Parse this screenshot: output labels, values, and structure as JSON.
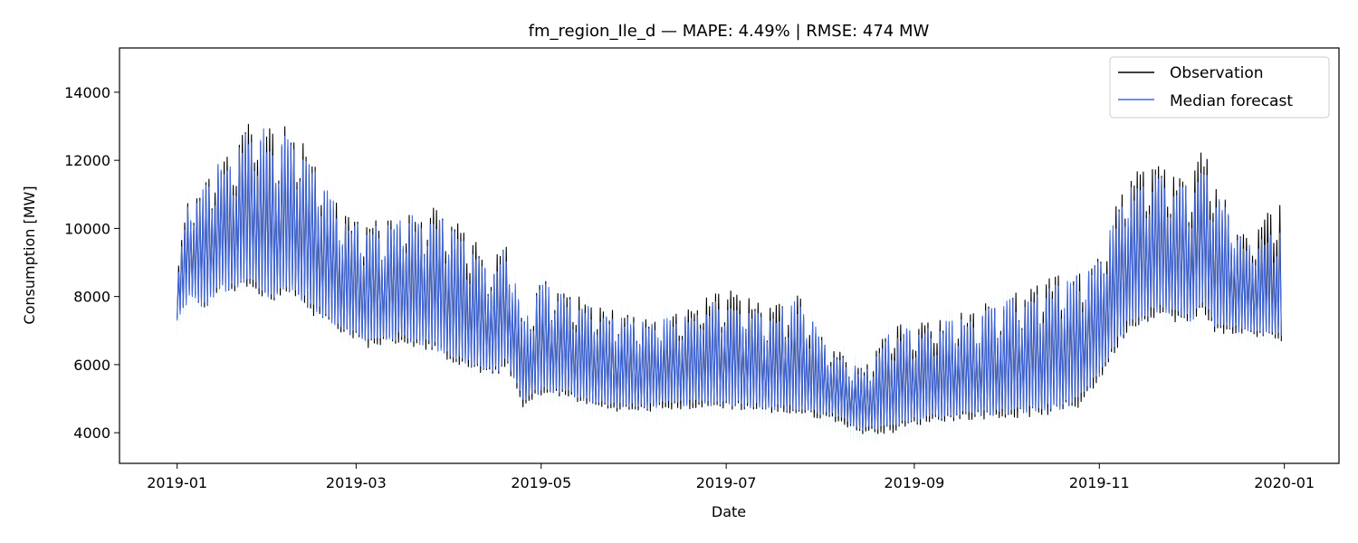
{
  "chart_data": {
    "type": "line",
    "title": "fm_region_Ile_d — MAPE: 4.49% | RMSE: 474 MW",
    "xlabel": "Date",
    "ylabel": "Consumption [MW]",
    "xlim": [
      "2018-12-13",
      "2020-01-19"
    ],
    "ylim": [
      3100,
      15300
    ],
    "x_ticks": [
      "2019-01",
      "2019-03",
      "2019-05",
      "2019-07",
      "2019-09",
      "2019-11",
      "2020-01"
    ],
    "y_ticks": [
      4000,
      6000,
      8000,
      10000,
      12000,
      14000
    ],
    "grid": false,
    "legend_position": "top-right",
    "colors": {
      "observation": "#000000",
      "median": "#4169e1",
      "band": "#add8e6"
    },
    "series": [
      {
        "name": "Observation",
        "role": "observation",
        "envelope_dates": [
          "2019-01-01",
          "2019-01-05",
          "2019-01-10",
          "2019-01-15",
          "2019-01-20",
          "2019-01-25",
          "2019-02-01",
          "2019-02-07",
          "2019-02-15",
          "2019-02-25",
          "2019-03-05",
          "2019-03-15",
          "2019-03-25",
          "2019-04-05",
          "2019-04-15",
          "2019-04-20",
          "2019-04-25",
          "2019-05-01",
          "2019-05-10",
          "2019-05-20",
          "2019-06-01",
          "2019-06-15",
          "2019-07-01",
          "2019-07-15",
          "2019-07-25",
          "2019-08-05",
          "2019-08-15",
          "2019-08-25",
          "2019-09-05",
          "2019-09-20",
          "2019-10-01",
          "2019-10-15",
          "2019-10-25",
          "2019-11-01",
          "2019-11-10",
          "2019-11-20",
          "2019-12-01",
          "2019-12-05",
          "2019-12-10",
          "2019-12-20",
          "2019-12-31"
        ],
        "envelope_high": [
          9000,
          11800,
          12100,
          12900,
          13000,
          14400,
          13900,
          13900,
          12900,
          11000,
          10800,
          11200,
          11400,
          10800,
          9600,
          10500,
          7700,
          9200,
          8700,
          8300,
          7900,
          8100,
          8900,
          8200,
          8700,
          6900,
          6300,
          7800,
          7800,
          8200,
          8700,
          9200,
          9500,
          10000,
          12300,
          12700,
          12200,
          13300,
          12000,
          10200,
          11700
        ],
        "envelope_low": [
          7300,
          7900,
          7500,
          8100,
          8000,
          8200,
          7600,
          8000,
          7300,
          6800,
          6400,
          6500,
          6300,
          5800,
          5500,
          5800,
          4600,
          5000,
          4900,
          4600,
          4500,
          4600,
          4600,
          4500,
          4400,
          4300,
          3900,
          3900,
          4200,
          4300,
          4300,
          4400,
          4600,
          5400,
          6800,
          7300,
          7000,
          7400,
          6700,
          6800,
          6500
        ]
      },
      {
        "name": "Median forecast",
        "role": "median",
        "envelope_dates": [
          "2019-01-01",
          "2019-01-05",
          "2019-01-10",
          "2019-01-15",
          "2019-01-20",
          "2019-01-25",
          "2019-02-01",
          "2019-02-07",
          "2019-02-15",
          "2019-02-25",
          "2019-03-05",
          "2019-03-15",
          "2019-03-25",
          "2019-04-05",
          "2019-04-15",
          "2019-04-20",
          "2019-04-25",
          "2019-05-01",
          "2019-05-10",
          "2019-05-20",
          "2019-06-01",
          "2019-06-15",
          "2019-07-01",
          "2019-07-15",
          "2019-07-25",
          "2019-08-05",
          "2019-08-15",
          "2019-08-25",
          "2019-09-05",
          "2019-09-20",
          "2019-10-01",
          "2019-10-15",
          "2019-10-25",
          "2019-11-01",
          "2019-11-10",
          "2019-11-20",
          "2019-12-01",
          "2019-12-05",
          "2019-12-10",
          "2019-12-20",
          "2019-12-31"
        ],
        "envelope_high": [
          8800,
          11500,
          11900,
          12700,
          12800,
          14000,
          13700,
          13600,
          12700,
          10800,
          10600,
          11000,
          11200,
          10500,
          9400,
          10200,
          7600,
          9000,
          8500,
          8100,
          7800,
          7900,
          8600,
          8000,
          8500,
          6700,
          6200,
          7600,
          7600,
          8000,
          8500,
          9000,
          9300,
          9800,
          12000,
          12400,
          11900,
          12900,
          11800,
          10000,
          10700
        ],
        "envelope_low": [
          7200,
          7800,
          7500,
          8000,
          8000,
          8200,
          7700,
          8000,
          7400,
          6900,
          6500,
          6600,
          6400,
          5900,
          5600,
          5900,
          4800,
          5100,
          5000,
          4700,
          4600,
          4700,
          4700,
          4600,
          4500,
          4400,
          4000,
          4000,
          4300,
          4400,
          4400,
          4500,
          4700,
          5500,
          6900,
          7400,
          7100,
          7500,
          6800,
          6900,
          6700
        ]
      }
    ]
  }
}
